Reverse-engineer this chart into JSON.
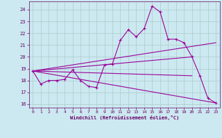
{
  "xlabel": "Windchill (Refroidissement éolien,°C)",
  "background_color": "#cce8f0",
  "grid_color": "#aacccc",
  "line_color": "#990099",
  "xlim": [
    -0.5,
    23.5
  ],
  "ylim": [
    15.7,
    24.7
  ],
  "yticks": [
    16,
    17,
    18,
    19,
    20,
    21,
    22,
    23,
    24
  ],
  "xticks": [
    0,
    1,
    2,
    3,
    4,
    5,
    6,
    7,
    8,
    9,
    10,
    11,
    12,
    13,
    14,
    15,
    16,
    17,
    18,
    19,
    20,
    21,
    22,
    23
  ],
  "series": [
    {
      "x": [
        0,
        1,
        2,
        3,
        4,
        5,
        6,
        7,
        8,
        9,
        10,
        11,
        12,
        13,
        14,
        15,
        16,
        17,
        18,
        19,
        20,
        21,
        22,
        23
      ],
      "y": [
        18.8,
        17.7,
        18.0,
        18.0,
        18.1,
        18.9,
        18.0,
        17.5,
        17.4,
        19.3,
        19.4,
        21.4,
        22.3,
        21.7,
        22.4,
        24.3,
        23.8,
        21.5,
        21.5,
        21.2,
        20.0,
        18.4,
        16.5,
        16.1
      ],
      "has_markers": true
    },
    {
      "x": [
        0,
        23
      ],
      "y": [
        18.8,
        21.2
      ],
      "has_markers": false
    },
    {
      "x": [
        0,
        23
      ],
      "y": [
        18.8,
        16.1
      ],
      "has_markers": false
    },
    {
      "x": [
        0,
        20
      ],
      "y": [
        18.8,
        20.0
      ],
      "has_markers": false
    },
    {
      "x": [
        0,
        20
      ],
      "y": [
        18.8,
        18.4
      ],
      "has_markers": false
    }
  ]
}
